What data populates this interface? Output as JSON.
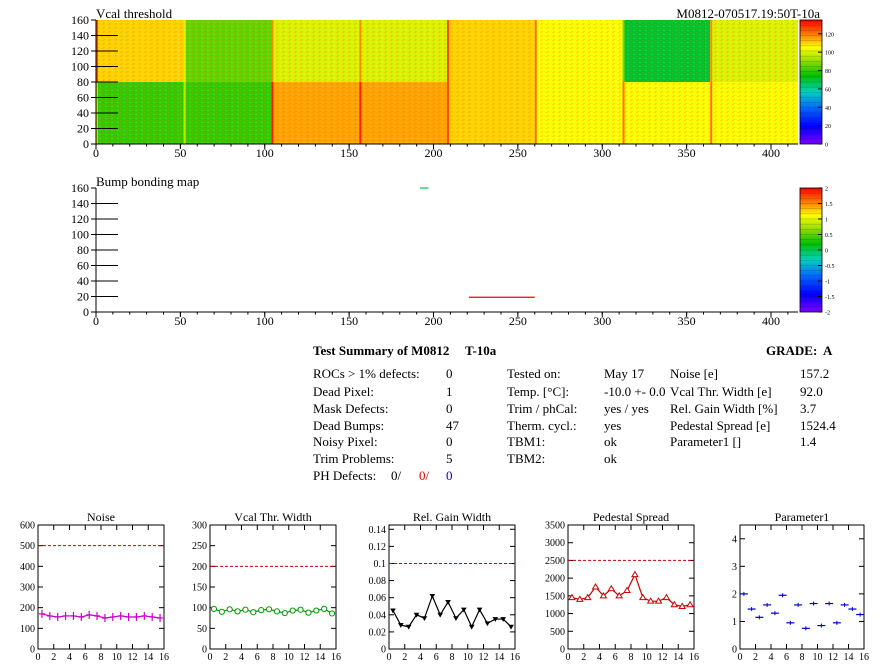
{
  "header": {
    "top_title": "Vcal threshold",
    "module_label": "M0812-070517.19:50T-10a",
    "bump_title": "Bump bonding map"
  },
  "colors": {
    "background": "#ffffff",
    "dashed_reference": "#cc0000",
    "noise_series": "#cc00cc",
    "vcal_series": "#009900",
    "gain_series": "#000000",
    "pedestal_series": "#cc0000",
    "parameter1_series": "#0000cc"
  },
  "summary": {
    "title": "Test Summary of M0812",
    "test_id": "T-10a",
    "grade_label": "GRADE:",
    "grade_value": "A",
    "left_rows": [
      {
        "label": "ROCs > 1% defects:",
        "value": "0"
      },
      {
        "label": "Dead Pixel:",
        "value": "1"
      },
      {
        "label": "Mask Defects:",
        "value": "0"
      },
      {
        "label": "Dead Bumps:",
        "value": "47"
      },
      {
        "label": "Noisy Pixel:",
        "value": "0"
      },
      {
        "label": "Trim Problems:",
        "value": "5"
      }
    ],
    "ph_defects": {
      "label": "PH Defects:",
      "v1": "0/",
      "v2": "0/",
      "v3": "0"
    },
    "middle_rows": [
      {
        "label": "Tested on:",
        "value": "May 17"
      },
      {
        "label": "Temp. [°C]:",
        "value": "-10.0 +- 0.0"
      },
      {
        "label": "Trim / phCal:",
        "value": "yes / yes"
      },
      {
        "label": "Therm. cycl.:",
        "value": "yes"
      },
      {
        "label": "TBM1:",
        "value": "ok"
      },
      {
        "label": "TBM2:",
        "value": "ok"
      }
    ],
    "right_rows": [
      {
        "label": "Noise [e]",
        "value": "157.2"
      },
      {
        "label": "Vcal Thr. Width [e]",
        "value": "92.0"
      },
      {
        "label": "Rel. Gain Width [%]",
        "value": "3.7"
      },
      {
        "label": "Pedestal Spread [e]",
        "value": "1524.4"
      },
      {
        "label": "Parameter1 []",
        "value": "1.4"
      }
    ]
  },
  "chart_data": [
    {
      "type": "heatmap",
      "title": "Vcal threshold",
      "xlim": [
        0,
        416
      ],
      "ylim": [
        0,
        160
      ],
      "xticks": [
        0,
        50,
        100,
        150,
        200,
        250,
        300,
        350,
        400
      ],
      "yticks": [
        0,
        20,
        40,
        60,
        80,
        100,
        120,
        140,
        160
      ],
      "color_scale": {
        "range": [
          0,
          135
        ],
        "ticks": [
          0,
          20,
          40,
          60,
          80,
          100,
          120
        ]
      },
      "roc_means": {
        "top_row": [
          110,
          85,
          100,
          100,
          110,
          105,
          70,
          100
        ],
        "bottom_row": [
          80,
          80,
          115,
          115,
          110,
          105,
          105,
          105
        ]
      }
    },
    {
      "type": "heatmap",
      "title": "Bump bonding map",
      "xlim": [
        0,
        416
      ],
      "ylim": [
        0,
        160
      ],
      "xticks": [
        0,
        50,
        100,
        150,
        200,
        250,
        300,
        350,
        400
      ],
      "yticks": [
        0,
        20,
        40,
        60,
        80,
        100,
        120,
        140,
        160
      ],
      "color_scale": {
        "range": [
          -2,
          2
        ],
        "ticks": [
          -2,
          -1.5,
          -1,
          -0.5,
          0,
          0.5,
          1,
          1.5,
          2
        ]
      },
      "defect_segments": [
        {
          "x": [
            221,
            260
          ],
          "y": 19,
          "level": 2
        },
        {
          "x": [
            192,
            197
          ],
          "y": 160,
          "level": 0
        }
      ]
    },
    {
      "type": "line",
      "title": "Noise",
      "x": [
        0,
        1,
        2,
        3,
        4,
        5,
        6,
        7,
        8,
        9,
        10,
        11,
        12,
        13,
        14,
        15
      ],
      "values": [
        170,
        160,
        155,
        160,
        160,
        155,
        165,
        160,
        150,
        155,
        160,
        155,
        155,
        160,
        155,
        150
      ],
      "reference": 500,
      "marker": "errorbar",
      "xlim": [
        0,
        16
      ],
      "ylim": [
        0,
        600
      ],
      "xticks": [
        0,
        2,
        4,
        6,
        8,
        10,
        12,
        14,
        16
      ],
      "yticks": [
        0,
        100,
        200,
        300,
        400,
        500,
        600
      ]
    },
    {
      "type": "line",
      "title": "Vcal Thr. Width",
      "x": [
        0,
        1,
        2,
        3,
        4,
        5,
        6,
        7,
        8,
        9,
        10,
        11,
        12,
        13,
        14,
        15
      ],
      "values": [
        97,
        90,
        96,
        91,
        95,
        89,
        94,
        96,
        91,
        87,
        93,
        95,
        88,
        93,
        97,
        86
      ],
      "reference": 200,
      "marker": "open-circle",
      "xlim": [
        0,
        16
      ],
      "ylim": [
        0,
        300
      ],
      "xticks": [
        0,
        2,
        4,
        6,
        8,
        10,
        12,
        14,
        16
      ],
      "yticks": [
        0,
        50,
        100,
        150,
        200,
        250,
        300
      ]
    },
    {
      "type": "line",
      "title": "Rel. Gain Width",
      "x": [
        0,
        1,
        2,
        3,
        4,
        5,
        6,
        7,
        8,
        9,
        10,
        11,
        12,
        13,
        14,
        15
      ],
      "values": [
        0.045,
        0.028,
        0.026,
        0.04,
        0.036,
        0.062,
        0.04,
        0.055,
        0.036,
        0.046,
        0.026,
        0.046,
        0.03,
        0.035,
        0.035,
        0.026
      ],
      "reference": 0.1,
      "marker": "filled-triangle",
      "xlim": [
        0,
        16
      ],
      "ylim": [
        0,
        0.145
      ],
      "xticks": [
        0,
        2,
        4,
        6,
        8,
        10,
        12,
        14,
        16
      ],
      "yticks": [
        0,
        0.02,
        0.04,
        0.06,
        0.08,
        0.1,
        0.12,
        0.14
      ]
    },
    {
      "type": "line",
      "title": "Pedestal Spread",
      "x": [
        0,
        1,
        2,
        3,
        4,
        5,
        6,
        7,
        8,
        9,
        10,
        11,
        12,
        13,
        14,
        15
      ],
      "values": [
        1450,
        1400,
        1450,
        1750,
        1500,
        1700,
        1500,
        1650,
        2100,
        1450,
        1350,
        1350,
        1450,
        1250,
        1200,
        1250
      ],
      "reference": 2500,
      "marker": "open-triangle",
      "xlim": [
        0,
        16
      ],
      "ylim": [
        0,
        3500
      ],
      "xticks": [
        0,
        2,
        4,
        6,
        8,
        10,
        12,
        14,
        16
      ],
      "yticks": [
        0,
        500,
        1000,
        1500,
        2000,
        2500,
        3000,
        3500
      ]
    },
    {
      "type": "scatter",
      "title": "Parameter1",
      "x": [
        0,
        1,
        2,
        3,
        4,
        5,
        6,
        7,
        8,
        9,
        10,
        11,
        12,
        13,
        14,
        15
      ],
      "values": [
        2.0,
        1.45,
        1.15,
        1.6,
        1.3,
        1.95,
        0.95,
        1.6,
        0.75,
        1.65,
        0.85,
        1.65,
        0.95,
        1.6,
        1.45,
        1.25
      ],
      "marker": "horizontal-errorbar",
      "xlim": [
        0,
        16
      ],
      "ylim": [
        0,
        4.5
      ],
      "xticks": [
        0,
        2,
        4,
        6,
        8,
        10,
        12,
        14,
        16
      ],
      "yticks": [
        0,
        1,
        2,
        3,
        4
      ]
    }
  ]
}
